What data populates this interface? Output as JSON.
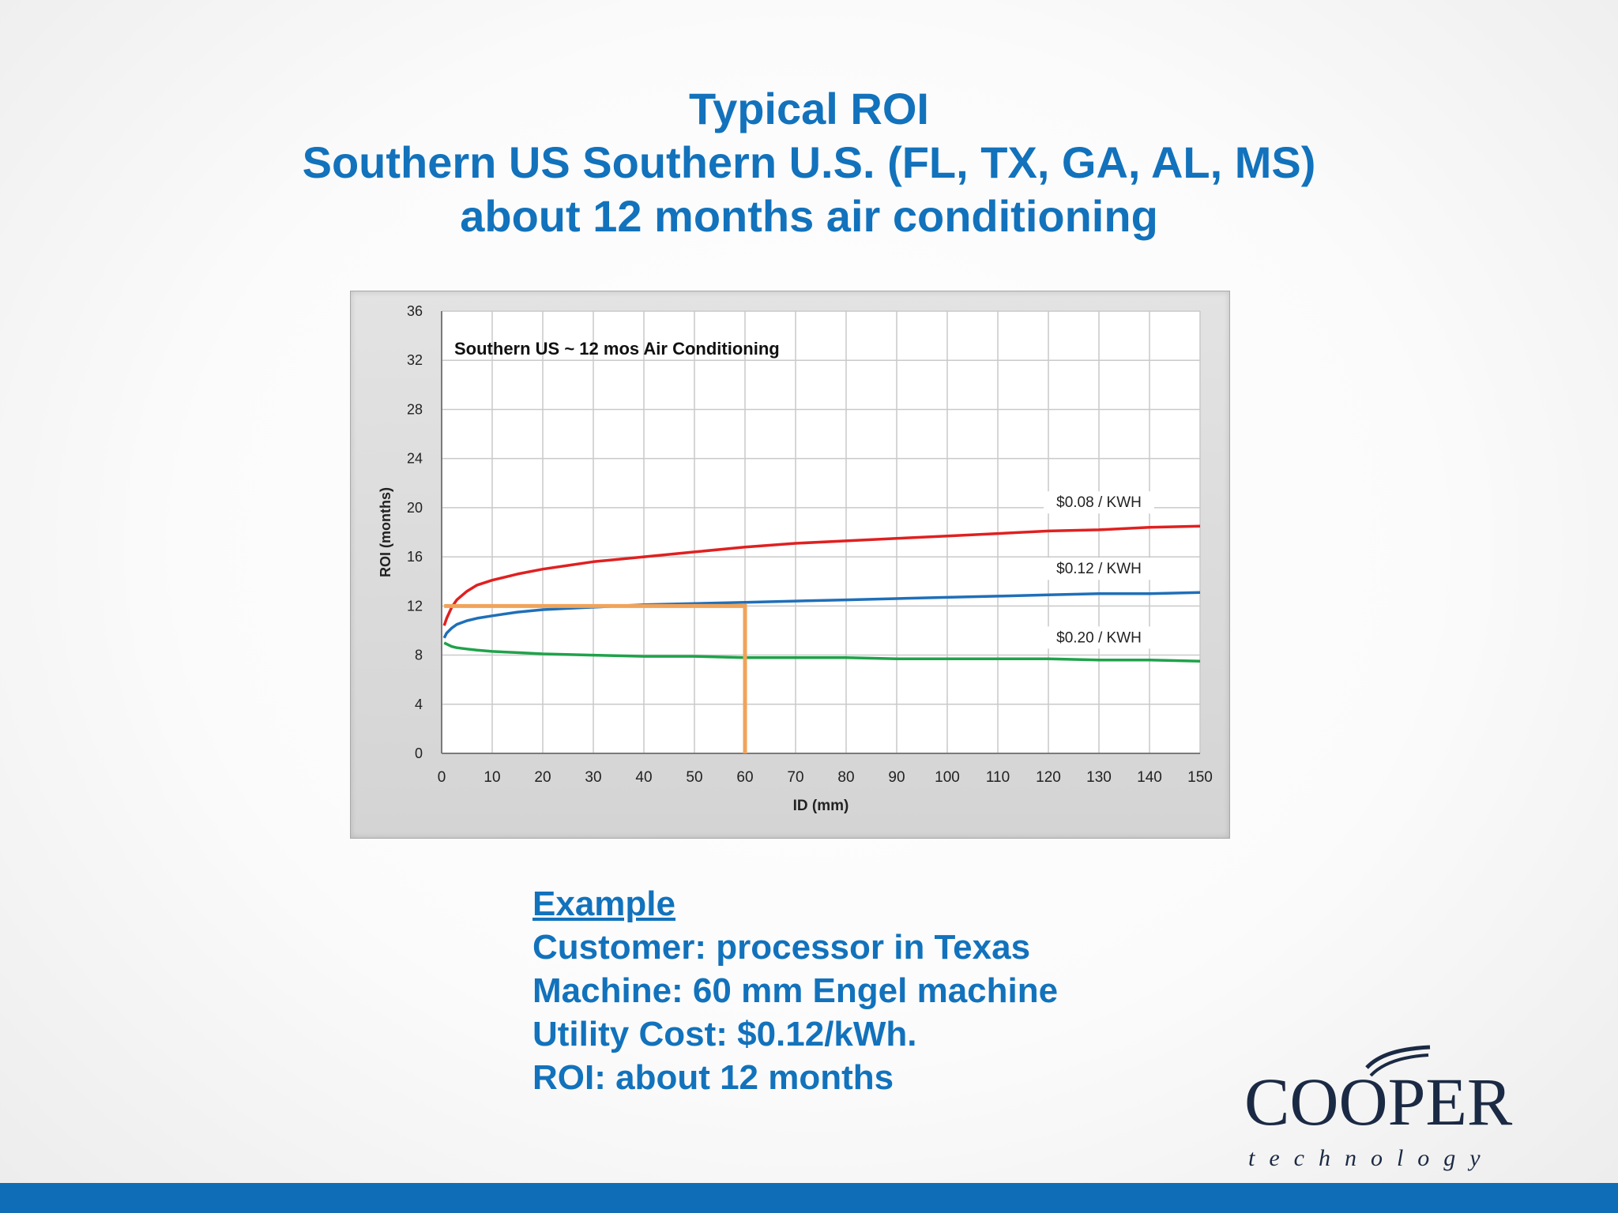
{
  "slide": {
    "title_lines": [
      "Typical ROI",
      "Southern US Southern U.S. (FL, TX, GA, AL, MS)",
      "about 12 months air conditioning"
    ],
    "example": {
      "heading": "Example",
      "lines": [
        "Customer: processor in Texas",
        "Machine: 60 mm Engel machine",
        "Utility Cost: $0.12/kWh.",
        "ROI: about 12 months"
      ]
    },
    "logo": {
      "brand": "COOPER",
      "tagline": "technology"
    },
    "colors": {
      "title": "#1272bc",
      "bottom_bar": "#0f6db7"
    }
  },
  "chart_data": {
    "type": "line",
    "title": "Southern US ~ 12 mos Air Conditioning",
    "xlabel": "ID (mm)",
    "ylabel": "ROI (months)",
    "xlim": [
      0,
      150
    ],
    "ylim": [
      0,
      36
    ],
    "xticks": [
      0,
      10,
      20,
      30,
      40,
      50,
      60,
      70,
      80,
      90,
      100,
      110,
      120,
      130,
      140,
      150
    ],
    "yticks": [
      0,
      4,
      8,
      12,
      16,
      20,
      24,
      28,
      32,
      36
    ],
    "grid": true,
    "series": [
      {
        "name": "$0.08 / KWH",
        "color": "#e02020",
        "x": [
          0.5,
          1,
          2,
          3,
          5,
          7,
          10,
          15,
          20,
          25,
          30,
          40,
          50,
          60,
          70,
          80,
          90,
          100,
          110,
          120,
          130,
          140,
          150
        ],
        "y": [
          10.4,
          11.0,
          11.9,
          12.5,
          13.2,
          13.7,
          14.1,
          14.6,
          15.0,
          15.3,
          15.6,
          16.0,
          16.4,
          16.8,
          17.1,
          17.3,
          17.5,
          17.7,
          17.9,
          18.1,
          18.2,
          18.4,
          18.5
        ]
      },
      {
        "name": "$0.12 / KWH",
        "color": "#1f6fb8",
        "x": [
          0.5,
          1,
          2,
          3,
          5,
          7,
          10,
          15,
          20,
          25,
          30,
          40,
          50,
          60,
          70,
          80,
          90,
          100,
          110,
          120,
          130,
          140,
          150
        ],
        "y": [
          9.4,
          9.8,
          10.2,
          10.5,
          10.8,
          11.0,
          11.2,
          11.5,
          11.7,
          11.8,
          11.9,
          12.1,
          12.2,
          12.3,
          12.4,
          12.5,
          12.6,
          12.7,
          12.8,
          12.9,
          13.0,
          13.0,
          13.1
        ]
      },
      {
        "name": "$0.20 / KWH",
        "color": "#1fa24a",
        "x": [
          0.5,
          1,
          2,
          3,
          5,
          7,
          10,
          15,
          20,
          30,
          40,
          50,
          60,
          70,
          80,
          90,
          100,
          110,
          120,
          130,
          140,
          150
        ],
        "y": [
          9.0,
          8.9,
          8.7,
          8.6,
          8.5,
          8.4,
          8.3,
          8.2,
          8.1,
          8.0,
          7.9,
          7.9,
          7.8,
          7.8,
          7.8,
          7.7,
          7.7,
          7.7,
          7.7,
          7.6,
          7.6,
          7.5
        ]
      }
    ],
    "annotation": {
      "x": 60,
      "y": 12,
      "color": "#f0a35a"
    }
  }
}
